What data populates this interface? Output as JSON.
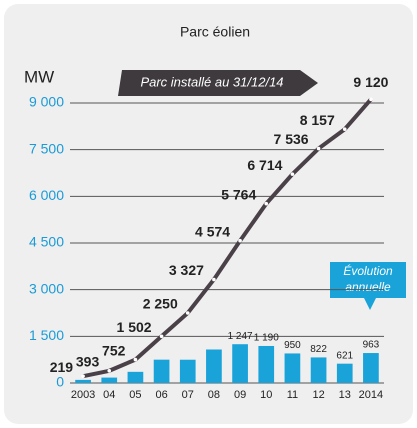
{
  "chart_data": {
    "type": "line-bar",
    "title": "Parc éolien",
    "y_label": "MW",
    "annotation": "Parc installé au 31/12/14",
    "annotation2": [
      "Évolution",
      "annuelle"
    ],
    "categories": [
      "2003",
      "04",
      "05",
      "06",
      "07",
      "08",
      "09",
      "10",
      "11",
      "12",
      "13",
      "2014"
    ],
    "series": [
      {
        "type": "line",
        "color": "#4a4048",
        "values": [
          219,
          393,
          752,
          1502,
          2250,
          3327,
          4574,
          5764,
          6714,
          7536,
          8157,
          9120
        ],
        "value_labels": [
          "219",
          "393",
          "752",
          "1 502",
          "2 250",
          "3 327",
          "4 574",
          "5 764",
          "6 714",
          "7 536",
          "8 157",
          "9 120"
        ]
      },
      {
        "type": "bar",
        "color": "#1aa3d8",
        "values": [
          100,
          174,
          359,
          750,
          748,
          1077,
          1247,
          1190,
          950,
          822,
          621,
          963
        ],
        "value_labels": [
          null,
          null,
          null,
          null,
          null,
          null,
          "1 247",
          "1 190",
          "950",
          "822",
          "621",
          "963"
        ]
      }
    ],
    "ylim": [
      0,
      9000
    ],
    "yticks": [
      0,
      {
        "value": 1500,
        "label": "1 500"
      },
      {
        "value": 3000,
        "label": "3 000"
      },
      {
        "value": 4500,
        "label": "4 500"
      },
      {
        "value": 6000,
        "label": "6 000"
      },
      {
        "value": 7500,
        "label": "7 500"
      },
      {
        "value": 9000,
        "label": "9 000"
      }
    ],
    "grid": true
  }
}
